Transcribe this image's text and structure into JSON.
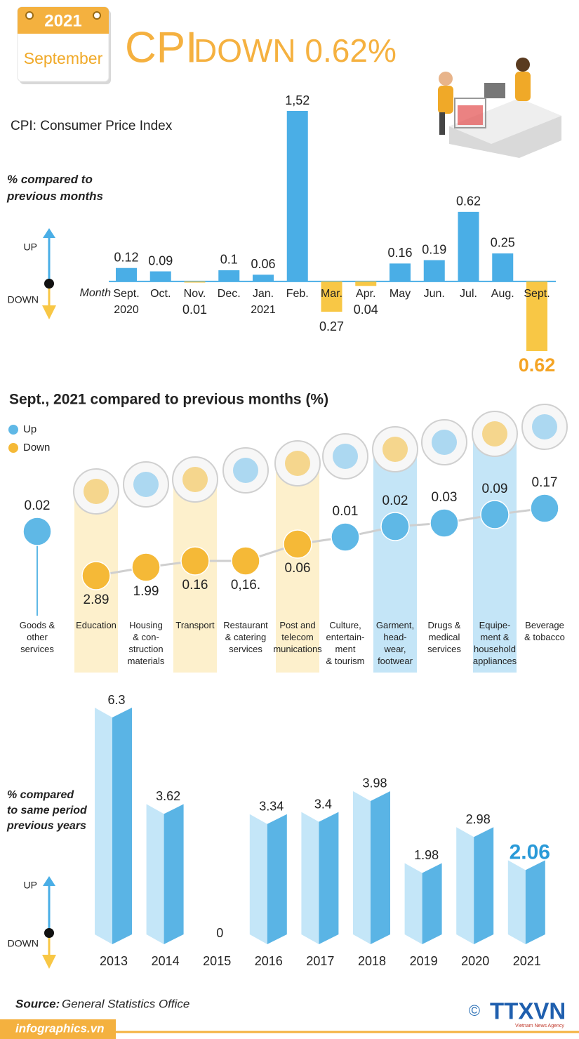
{
  "header": {
    "year": "2021",
    "month": "September",
    "title_cpi": "CPI",
    "title_rest": "DOWN 0.62%",
    "subtitle": "CPI: Consumer Price Index"
  },
  "chart_data": [
    {
      "type": "bar",
      "y_label": "% compared to\nprevious months",
      "up_label": "UP",
      "down_label": "DOWN",
      "x_label": "Month",
      "categories": [
        "Sept.\n2020",
        "Oct.",
        "Nov.",
        "Dec.",
        "Jan.\n2021",
        "Feb.",
        "Mar.",
        "Apr.",
        "May",
        "Jun.",
        "Jul.",
        "Aug.",
        "Sept."
      ],
      "values": [
        0.12,
        0.09,
        -0.01,
        0.1,
        0.06,
        1.52,
        -0.27,
        -0.04,
        0.16,
        0.19,
        0.62,
        0.25,
        -0.62
      ],
      "value_labels": [
        "0.12",
        "0.09",
        "0.01",
        "0.1",
        "0.06",
        "1,52",
        "0.27",
        "0.04",
        "0.16",
        "0.19",
        "0.62",
        "0.25",
        "0.62"
      ],
      "up_color": "#4aaee6",
      "down_color": "#f8c745",
      "ylim": [
        -0.62,
        1.52
      ]
    },
    {
      "type": "dot",
      "title": "Sept., 2021 compared to previous months (%)",
      "legend": {
        "up": "Up",
        "down": "Down"
      },
      "categories": [
        "Goods &\nother\nservices",
        "Education",
        "Housing\n& con-\nstruction\nmaterials",
        "Transport",
        "Restaurant\n& catering\nservices",
        "Post and\ntelecom\nmunications",
        "Culture,\nentertain-\nment\n& tourism",
        "Garment,\nhead-\nwear,\nfootwear",
        "Drugs &\nmedical\nservices",
        "Equipe-\nment &\nhousehold\nappliances",
        "Beverage\n& tobacco"
      ],
      "values": [
        0.02,
        -2.89,
        -1.99,
        -0.16,
        -0.16,
        -0.06,
        0.01,
        0.02,
        0.03,
        0.09,
        0.17
      ],
      "value_labels": [
        "0.02",
        "2.89",
        "1.99",
        "0.16",
        "0,16.",
        "0.06",
        "0.01",
        "0.02",
        "0.03",
        "0.09",
        "0.17"
      ],
      "up_color": "#5fb8e6",
      "down_color": "#f5b937"
    },
    {
      "type": "bar3d",
      "y_label": "% compared\nto same period\nprevious years",
      "up_label": "UP",
      "down_label": "DOWN",
      "categories": [
        "2013",
        "2014",
        "2015",
        "2016",
        "2017",
        "2018",
        "2019",
        "2020",
        "2021"
      ],
      "values": [
        6.3,
        3.62,
        0,
        3.34,
        3.4,
        3.98,
        1.98,
        2.98,
        2.06
      ],
      "color": "#5ab4e5",
      "ylim": [
        0,
        6.3
      ]
    }
  ],
  "footer": {
    "source_label": "Source:",
    "source": "General Statistics Office",
    "site": "infographics.vn",
    "copyright": "©",
    "agency": "TTXVN",
    "agency_sub": "Vietnam News Agency"
  }
}
